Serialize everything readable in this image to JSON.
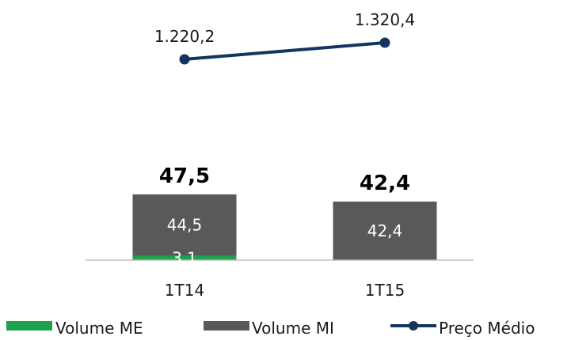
{
  "chart_data": {
    "type": "bar",
    "categories": [
      "1T14",
      "1T15"
    ],
    "series": [
      {
        "name": "Volume ME",
        "values": [
          3.1,
          0
        ],
        "labels": [
          "3,1",
          ""
        ],
        "color": "#1aa34a"
      },
      {
        "name": "Volume MI",
        "values": [
          44.5,
          42.4
        ],
        "labels": [
          "44,5",
          "42,4"
        ],
        "color": "#595959"
      }
    ],
    "totals": {
      "values": [
        47.5,
        42.4
      ],
      "labels": [
        "47,5",
        "42,4"
      ]
    },
    "line": {
      "name": "Preço Médio",
      "values": [
        1220.2,
        1320.4
      ],
      "labels": [
        "1.220,2",
        "1.320,4"
      ],
      "color": "#12365f"
    },
    "legend_position": "bottom",
    "grid": false
  }
}
